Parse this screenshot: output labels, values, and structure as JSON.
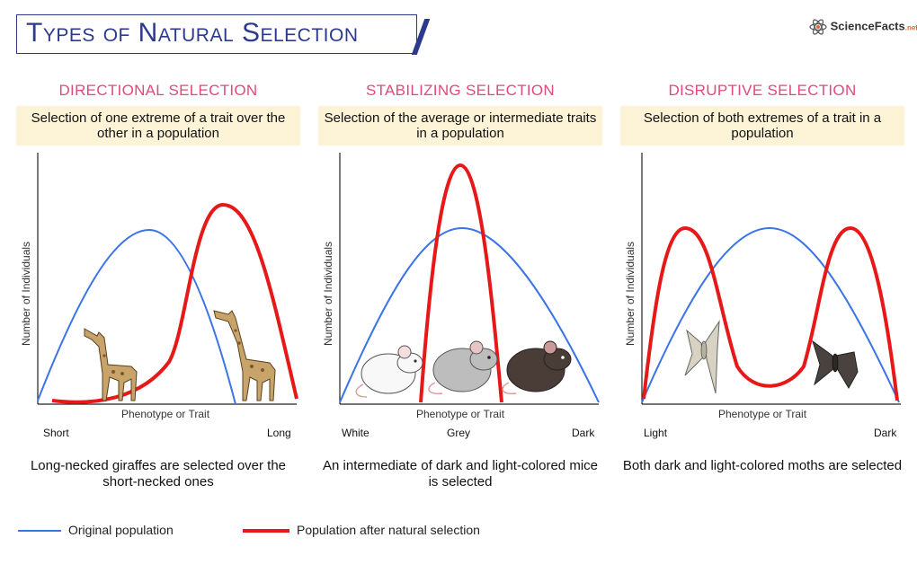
{
  "header": {
    "title": "Types of Natural Selection",
    "logo_text": "ScienceFacts",
    "logo_suffix": ".net"
  },
  "colors": {
    "original": "#3b74e6",
    "after": "#e61818",
    "heading": "#e04a7a",
    "desc_bg": "#fdf3d7",
    "title": "#2c3a8c"
  },
  "panels": [
    {
      "heading": "DIRECTIONAL SELECTION",
      "description": "Selection of one extreme of a trait over the other in a population",
      "ylabel": "Number of Individuals",
      "xlabel": "Phenotype or Trait",
      "tick_left": "Short",
      "tick_mid": "",
      "tick_right": "Long",
      "caption": "Long-necked giraffes are selected over the short-necked ones",
      "illustrations": [
        "short-necked giraffe",
        "long-necked giraffe"
      ]
    },
    {
      "heading": "STABILIZING SELECTION",
      "description": "Selection of the average or intermediate traits in a population",
      "ylabel": "Number of Individuals",
      "xlabel": "Phenotype or Trait",
      "tick_left": "White",
      "tick_mid": "Grey",
      "tick_right": "Dark",
      "caption": "An intermediate of dark and light-colored mice is selected",
      "illustrations": [
        "white mouse",
        "grey mouse",
        "dark mouse"
      ]
    },
    {
      "heading": "DISRUPTIVE SELECTION",
      "description": "Selection of both extremes of a trait in a population",
      "ylabel": "Number of Individuals",
      "xlabel": "Phenotype or Trait",
      "tick_left": "Light",
      "tick_mid": "",
      "tick_right": "Dark",
      "caption": "Both dark and light-colored moths are selected",
      "illustrations": [
        "light moth",
        "dark moth"
      ]
    }
  ],
  "legend": {
    "original": "Original population",
    "after": "Population after natural selection"
  }
}
